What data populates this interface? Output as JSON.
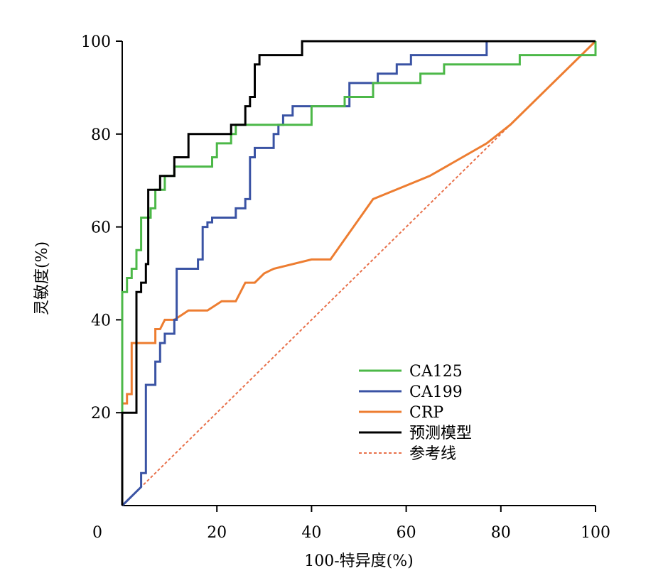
{
  "chart_data": {
    "type": "line",
    "title": "",
    "xlabel": "100-特异度(%)",
    "ylabel": "灵敏度(%)",
    "xlim": [
      0,
      100
    ],
    "ylim": [
      0,
      100
    ],
    "origin_label": "0",
    "xticks": [
      20,
      40,
      60,
      80,
      100
    ],
    "yticks": [
      20,
      40,
      60,
      80,
      100
    ],
    "grid": false,
    "legend_position": "bottom-right",
    "series": [
      {
        "name": "CA125",
        "color": "#4cb848",
        "step": true,
        "points": [
          [
            0,
            0
          ],
          [
            0,
            46
          ],
          [
            1,
            46
          ],
          [
            1,
            49
          ],
          [
            2,
            49
          ],
          [
            2,
            51
          ],
          [
            3,
            51
          ],
          [
            3,
            55
          ],
          [
            4,
            55
          ],
          [
            4,
            62
          ],
          [
            6,
            62
          ],
          [
            6,
            64
          ],
          [
            7,
            64
          ],
          [
            7,
            68
          ],
          [
            9,
            68
          ],
          [
            9,
            71
          ],
          [
            11,
            71
          ],
          [
            11,
            73
          ],
          [
            19,
            73
          ],
          [
            19,
            75
          ],
          [
            20,
            75
          ],
          [
            20,
            78
          ],
          [
            23,
            78
          ],
          [
            23,
            80
          ],
          [
            24,
            80
          ],
          [
            24,
            82
          ],
          [
            40,
            82
          ],
          [
            40,
            86
          ],
          [
            47,
            86
          ],
          [
            47,
            88
          ],
          [
            53,
            88
          ],
          [
            53,
            91
          ],
          [
            63,
            91
          ],
          [
            63,
            93
          ],
          [
            68,
            93
          ],
          [
            68,
            95
          ],
          [
            84,
            95
          ],
          [
            84,
            97
          ],
          [
            100,
            97
          ],
          [
            100,
            100
          ]
        ]
      },
      {
        "name": "CA199",
        "color": "#3a53a4",
        "step": true,
        "points": [
          [
            0,
            0
          ],
          [
            4,
            4
          ],
          [
            4,
            7
          ],
          [
            5,
            7
          ],
          [
            5,
            26
          ],
          [
            7,
            26
          ],
          [
            7,
            31
          ],
          [
            8,
            31
          ],
          [
            8,
            35
          ],
          [
            9,
            35
          ],
          [
            9,
            37
          ],
          [
            11,
            37
          ],
          [
            11,
            40
          ],
          [
            11.5,
            40
          ],
          [
            11.5,
            51
          ],
          [
            16,
            51
          ],
          [
            16,
            53
          ],
          [
            17,
            53
          ],
          [
            17,
            60
          ],
          [
            18,
            60
          ],
          [
            18,
            61
          ],
          [
            19,
            61
          ],
          [
            19,
            62
          ],
          [
            24,
            62
          ],
          [
            24,
            64
          ],
          [
            26,
            64
          ],
          [
            26,
            66
          ],
          [
            27,
            66
          ],
          [
            27,
            75
          ],
          [
            28,
            75
          ],
          [
            28,
            77
          ],
          [
            32,
            77
          ],
          [
            32,
            80
          ],
          [
            33,
            80
          ],
          [
            33,
            82
          ],
          [
            34,
            82
          ],
          [
            34,
            84
          ],
          [
            36,
            84
          ],
          [
            36,
            86
          ],
          [
            48,
            86
          ],
          [
            48,
            91
          ],
          [
            54,
            91
          ],
          [
            54,
            93
          ],
          [
            58,
            93
          ],
          [
            58,
            95
          ],
          [
            61,
            95
          ],
          [
            61,
            97
          ],
          [
            77,
            97
          ],
          [
            77,
            100
          ],
          [
            100,
            100
          ]
        ]
      },
      {
        "name": "CRP",
        "color": "#ed7d31",
        "step": false,
        "points": [
          [
            0,
            0
          ],
          [
            0,
            22
          ],
          [
            1,
            22
          ],
          [
            1,
            24
          ],
          [
            2,
            24
          ],
          [
            2,
            35
          ],
          [
            7,
            35
          ],
          [
            7,
            38
          ],
          [
            8,
            38
          ],
          [
            9,
            40
          ],
          [
            11,
            40
          ],
          [
            14,
            42
          ],
          [
            18,
            42
          ],
          [
            21,
            44
          ],
          [
            24,
            44
          ],
          [
            25,
            46
          ],
          [
            26,
            48
          ],
          [
            28,
            48
          ],
          [
            30,
            50
          ],
          [
            32,
            51
          ],
          [
            40,
            53
          ],
          [
            44,
            53
          ],
          [
            53,
            66
          ],
          [
            65,
            71
          ],
          [
            77,
            78
          ],
          [
            82,
            82
          ],
          [
            100,
            100
          ]
        ]
      },
      {
        "name": "预测模型",
        "color": "#000000",
        "step": true,
        "points": [
          [
            0,
            0
          ],
          [
            0,
            20
          ],
          [
            3,
            20
          ],
          [
            3,
            46
          ],
          [
            4,
            46
          ],
          [
            4,
            48
          ],
          [
            5,
            48
          ],
          [
            5,
            52
          ],
          [
            5.5,
            52
          ],
          [
            5.5,
            68
          ],
          [
            8,
            68
          ],
          [
            8,
            71
          ],
          [
            11,
            71
          ],
          [
            11,
            75
          ],
          [
            14,
            75
          ],
          [
            14,
            80
          ],
          [
            23,
            80
          ],
          [
            23,
            82
          ],
          [
            26,
            82
          ],
          [
            26,
            86
          ],
          [
            27,
            86
          ],
          [
            27,
            88
          ],
          [
            28,
            88
          ],
          [
            28,
            95
          ],
          [
            29,
            95
          ],
          [
            29,
            97
          ],
          [
            38,
            97
          ],
          [
            38,
            100
          ],
          [
            100,
            100
          ]
        ]
      },
      {
        "name": "参考线",
        "color": "#e8704a",
        "dashed": true,
        "step": false,
        "points": [
          [
            0,
            0
          ],
          [
            100,
            100
          ]
        ]
      }
    ]
  }
}
